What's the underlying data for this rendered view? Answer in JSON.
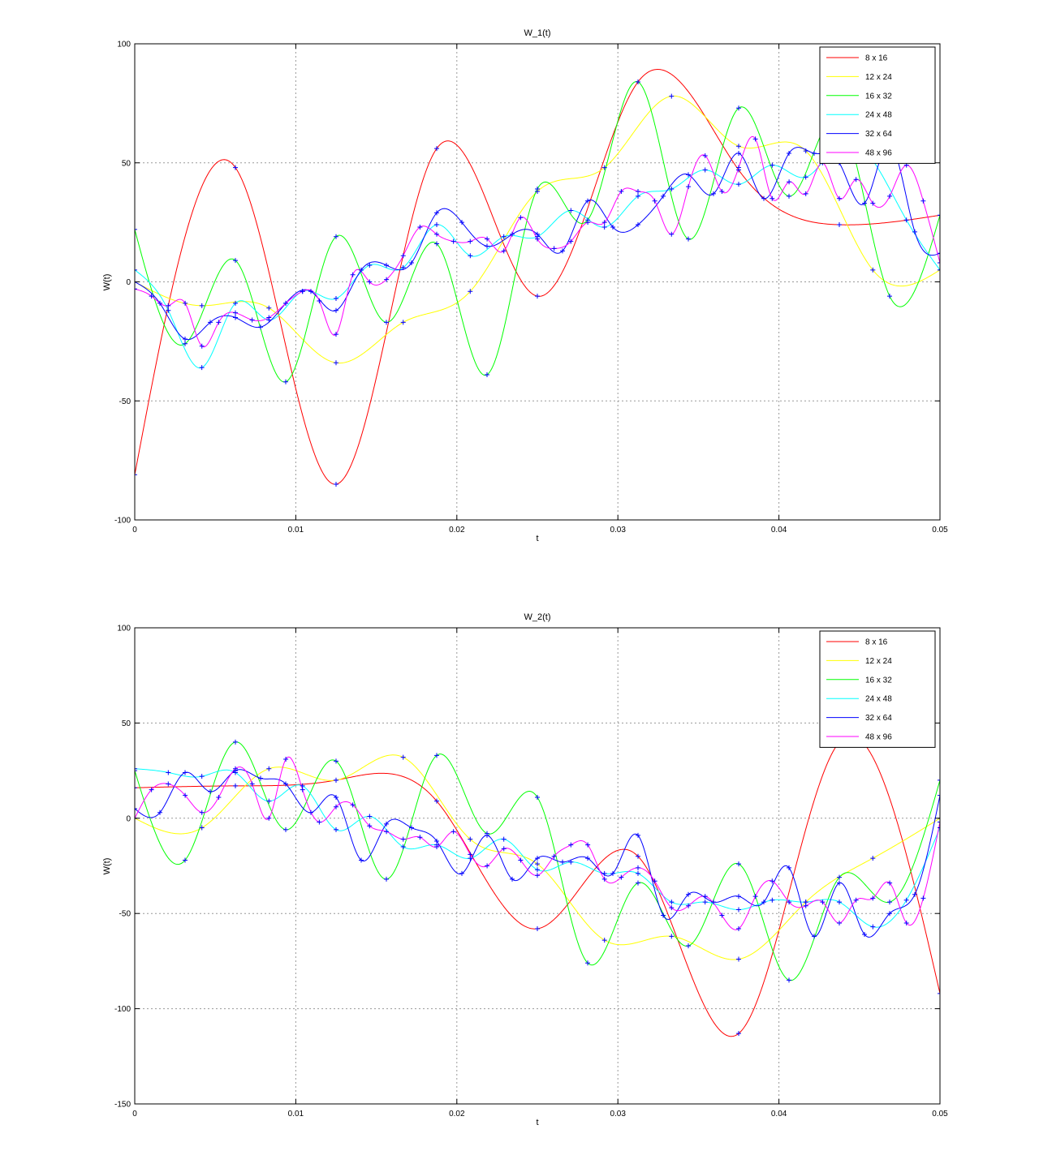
{
  "chart_data": [
    {
      "type": "line",
      "title": "W_1(t)",
      "xlabel": "t",
      "ylabel": "W(t)",
      "xlim": [
        0,
        0.05
      ],
      "ylim": [
        -100,
        100
      ],
      "xticks": [
        0,
        0.01,
        0.02,
        0.03,
        0.04,
        0.05
      ],
      "xtick_labels": [
        "0",
        "0.01",
        "0.02",
        "0.03",
        "0.04",
        "0.05"
      ],
      "yticks": [
        -100,
        -50,
        0,
        50,
        100
      ],
      "ytick_labels": [
        "-100",
        "-50",
        "0",
        "50",
        "100"
      ],
      "grid": true,
      "legend_position": "top-right",
      "series": [
        {
          "name": "8 x 16",
          "color": "#ff0000",
          "x": [
            0,
            0.00625,
            0.0125,
            0.01875,
            0.025,
            0.03125,
            0.0375,
            0.04375,
            0.05
          ],
          "y": [
            -81,
            48,
            -85,
            56,
            -6,
            84,
            47,
            24,
            28
          ]
        },
        {
          "name": "12 x 24",
          "color": "#ffff00",
          "x": [
            0,
            0.00417,
            0.00833,
            0.0125,
            0.01667,
            0.02083,
            0.025,
            0.02917,
            0.03333,
            0.0375,
            0.04167,
            0.04583,
            0.05
          ],
          "y": [
            0,
            -10,
            -11,
            -34,
            -17,
            -4,
            38,
            48,
            78,
            57,
            55,
            5,
            5
          ]
        },
        {
          "name": "16 x 32",
          "color": "#00ff00",
          "x": [
            0,
            0.003125,
            0.00625,
            0.009375,
            0.0125,
            0.015625,
            0.01875,
            0.021875,
            0.025,
            0.028125,
            0.03125,
            0.034375,
            0.0375,
            0.040625,
            0.04375,
            0.046875,
            0.05
          ],
          "y": [
            22,
            -26,
            9,
            -42,
            19,
            -17,
            16,
            -39,
            39,
            26,
            84,
            18,
            73,
            36,
            69,
            -6,
            28
          ]
        },
        {
          "name": "24 x 48",
          "color": "#00ffff",
          "x": [
            0,
            0.002083,
            0.004167,
            0.00625,
            0.008333,
            0.010417,
            0.0125,
            0.014583,
            0.016667,
            0.01875,
            0.020833,
            0.022917,
            0.025,
            0.027083,
            0.029167,
            0.03125,
            0.033333,
            0.035417,
            0.0375,
            0.039583,
            0.041667,
            0.04375,
            0.045833,
            0.047917,
            0.05
          ],
          "y": [
            5,
            -12,
            -36,
            -9,
            -16,
            -4,
            -7,
            7,
            6,
            24,
            11,
            19,
            19,
            30,
            23,
            36,
            39,
            47,
            41,
            49,
            44,
            58,
            51,
            26,
            5
          ]
        },
        {
          "name": "32 x 64",
          "color": "#0000ff",
          "x": [
            0,
            0.0015625,
            0.003125,
            0.0046875,
            0.00625,
            0.0078125,
            0.009375,
            0.0109375,
            0.0125,
            0.0140625,
            0.015625,
            0.0171875,
            0.01875,
            0.0203125,
            0.021875,
            0.0234375,
            0.025,
            0.0265625,
            0.028125,
            0.0296875,
            0.03125,
            0.0328125,
            0.034375,
            0.0359375,
            0.0375,
            0.0390625,
            0.040625,
            0.0421875,
            0.04375,
            0.0453125,
            0.046875,
            0.0484375,
            0.05
          ],
          "y": [
            0,
            -9,
            -24,
            -17,
            -15,
            -19,
            -9,
            -4,
            -12,
            5,
            7,
            8,
            29,
            25,
            15,
            20,
            20,
            13,
            34,
            23,
            24,
            36,
            45,
            37,
            54,
            35,
            54,
            54,
            50,
            33,
            58,
            21,
            12
          ]
        },
        {
          "name": "48 x 96",
          "color": "#ff00ff",
          "x": [
            0,
            0.00104,
            0.00208,
            0.00313,
            0.00417,
            0.00521,
            0.00625,
            0.00729,
            0.00833,
            0.00938,
            0.01042,
            0.01146,
            0.0125,
            0.01354,
            0.01458,
            0.01563,
            0.01667,
            0.01771,
            0.01875,
            0.01979,
            0.02083,
            0.02188,
            0.02292,
            0.02396,
            0.025,
            0.02604,
            0.02708,
            0.02813,
            0.02917,
            0.03021,
            0.03125,
            0.03229,
            0.03333,
            0.03438,
            0.03542,
            0.03646,
            0.0375,
            0.03854,
            0.03958,
            0.04063,
            0.04167,
            0.04271,
            0.04375,
            0.04479,
            0.04583,
            0.04688,
            0.04792,
            0.04896,
            0.05
          ],
          "y": [
            -3,
            -6,
            -10,
            -9,
            -27,
            -17,
            -13,
            -16,
            -15,
            -9,
            -4,
            -8,
            -22,
            3,
            0,
            1,
            11,
            23,
            20,
            17,
            17,
            18,
            13,
            27,
            18,
            14,
            17,
            25,
            25,
            38,
            38,
            34,
            20,
            40,
            53,
            38,
            48,
            60,
            35,
            42,
            37,
            50,
            35,
            43,
            33,
            36,
            49,
            34,
            8
          ]
        }
      ]
    },
    {
      "type": "line",
      "title": "W_2(t)",
      "xlabel": "t",
      "ylabel": "W(t)",
      "xlim": [
        0,
        0.05
      ],
      "ylim": [
        -150,
        100
      ],
      "xticks": [
        0,
        0.01,
        0.02,
        0.03,
        0.04,
        0.05
      ],
      "xtick_labels": [
        "0",
        "0.01",
        "0.02",
        "0.03",
        "0.04",
        "0.05"
      ],
      "yticks": [
        -150,
        -100,
        -50,
        0,
        50,
        100
      ],
      "ytick_labels": [
        "-150",
        "-100",
        "-50",
        "0",
        "50",
        "100"
      ],
      "grid": true,
      "legend_position": "top-right",
      "series": [
        {
          "name": "8 x 16",
          "color": "#ff0000",
          "x": [
            0,
            0.00625,
            0.0125,
            0.01875,
            0.025,
            0.03125,
            0.0375,
            0.04375,
            0.05
          ],
          "y": [
            16,
            17,
            20,
            9,
            -58,
            -20,
            -113,
            40,
            -92
          ]
        },
        {
          "name": "12 x 24",
          "color": "#ffff00",
          "x": [
            0,
            0.00417,
            0.00833,
            0.0125,
            0.01667,
            0.02083,
            0.025,
            0.02917,
            0.03333,
            0.0375,
            0.04167,
            0.04583,
            0.05
          ],
          "y": [
            0,
            -5,
            26,
            20,
            32,
            -11,
            -24,
            -64,
            -62,
            -74,
            -44,
            -21,
            0
          ]
        },
        {
          "name": "16 x 32",
          "color": "#00ff00",
          "x": [
            0,
            0.003125,
            0.00625,
            0.009375,
            0.0125,
            0.015625,
            0.01875,
            0.021875,
            0.025,
            0.028125,
            0.03125,
            0.034375,
            0.0375,
            0.040625,
            0.04375,
            0.046875,
            0.05
          ],
          "y": [
            25,
            -22,
            40,
            -6,
            30,
            -32,
            33,
            -8,
            11,
            -76,
            -34,
            -67,
            -24,
            -85,
            -31,
            -44,
            20
          ]
        },
        {
          "name": "24 x 48",
          "color": "#00ffff",
          "x": [
            0,
            0.002083,
            0.004167,
            0.00625,
            0.008333,
            0.010417,
            0.0125,
            0.014583,
            0.016667,
            0.01875,
            0.020833,
            0.022917,
            0.025,
            0.027083,
            0.029167,
            0.03125,
            0.033333,
            0.035417,
            0.0375,
            0.039583,
            0.041667,
            0.04375,
            0.045833,
            0.047917,
            0.05
          ],
          "y": [
            26,
            24,
            22,
            24,
            9,
            17,
            -6,
            1,
            -15,
            -14,
            -21,
            -11,
            -27,
            -23,
            -29,
            -29,
            -44,
            -44,
            -48,
            -43,
            -44,
            -44,
            -57,
            -43,
            -5
          ]
        },
        {
          "name": "32 x 64",
          "color": "#0000ff",
          "x": [
            0,
            0.0015625,
            0.003125,
            0.0046875,
            0.00625,
            0.0078125,
            0.009375,
            0.0109375,
            0.0125,
            0.0140625,
            0.015625,
            0.0171875,
            0.01875,
            0.0203125,
            0.021875,
            0.0234375,
            0.025,
            0.0265625,
            0.028125,
            0.0296875,
            0.03125,
            0.0328125,
            0.034375,
            0.0359375,
            0.0375,
            0.0390625,
            0.040625,
            0.0421875,
            0.04375,
            0.0453125,
            0.046875,
            0.0484375,
            0.05
          ],
          "y": [
            5,
            3,
            24,
            14,
            25,
            21,
            18,
            3,
            11,
            -22,
            -3,
            -5,
            -12,
            -29,
            -9,
            -32,
            -21,
            -23,
            -21,
            -29,
            -9,
            -51,
            -40,
            -44,
            -41,
            -44,
            -26,
            -62,
            -34,
            -61,
            -50,
            -40,
            12
          ]
        },
        {
          "name": "48 x 96",
          "color": "#ff00ff",
          "x": [
            0,
            0.00104,
            0.00208,
            0.00313,
            0.00417,
            0.00521,
            0.00625,
            0.00729,
            0.00833,
            0.00938,
            0.01042,
            0.01146,
            0.0125,
            0.01354,
            0.01458,
            0.01563,
            0.01667,
            0.01771,
            0.01875,
            0.01979,
            0.02083,
            0.02188,
            0.02292,
            0.02396,
            0.025,
            0.02604,
            0.02708,
            0.02813,
            0.02917,
            0.03021,
            0.03125,
            0.03229,
            0.03333,
            0.03438,
            0.03542,
            0.03646,
            0.0375,
            0.03854,
            0.03958,
            0.04063,
            0.04167,
            0.04271,
            0.04375,
            0.04479,
            0.04583,
            0.04688,
            0.04792,
            0.04896,
            0.05
          ],
          "y": [
            0,
            15,
            18,
            12,
            3,
            11,
            26,
            18,
            0,
            31,
            15,
            -2,
            6,
            7,
            -4,
            -7,
            -11,
            -10,
            -15,
            -7,
            -19,
            -25,
            -16,
            -22,
            -30,
            -20,
            -14,
            -14,
            -32,
            -31,
            -26,
            -33,
            -47,
            -46,
            -41,
            -51,
            -58,
            -41,
            -33,
            -44,
            -46,
            -44,
            -55,
            -43,
            -42,
            -34,
            -55,
            -42,
            -2
          ]
        }
      ]
    }
  ]
}
